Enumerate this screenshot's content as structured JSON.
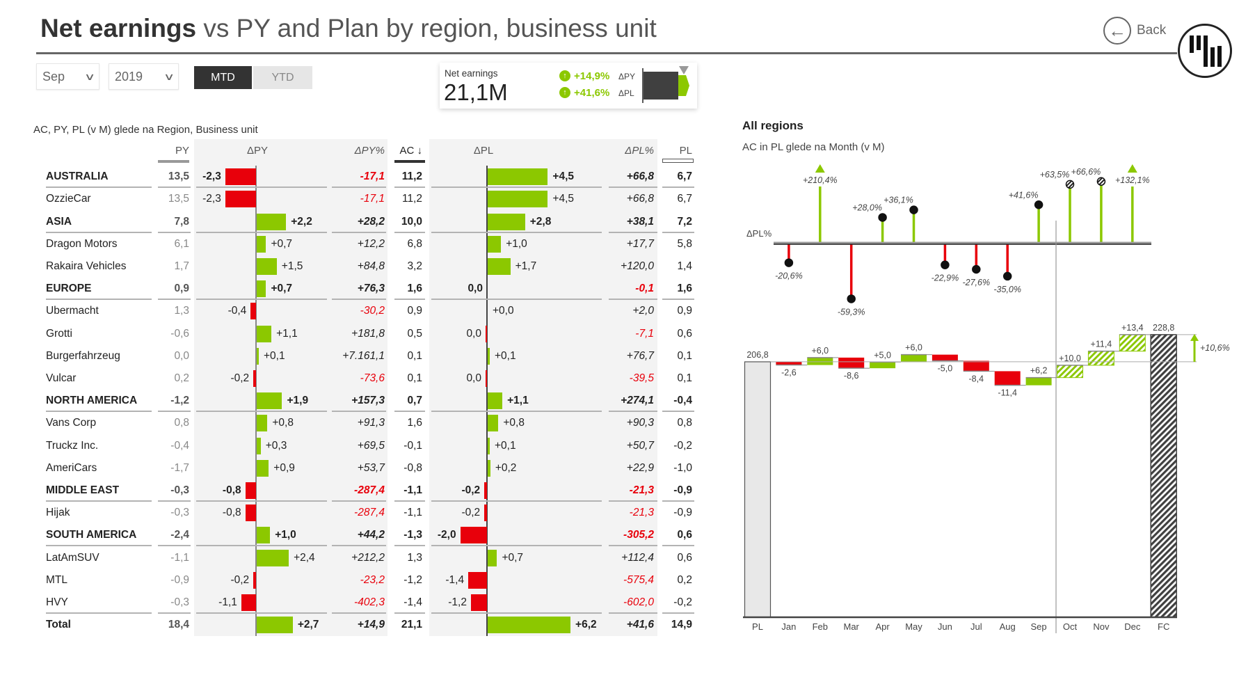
{
  "header": {
    "title_bold": "Net earnings",
    "title_rest": " vs PY and Plan by region, business unit",
    "back_label": "Back"
  },
  "filters": {
    "month": "Sep",
    "year": "2019",
    "toggle": [
      {
        "label": "MTD",
        "active": true
      },
      {
        "label": "YTD",
        "active": false
      }
    ]
  },
  "kpi_card": {
    "label": "Net earnings",
    "value": "21,1M",
    "delta_py": "+14,9%",
    "delta_py_label": "ΔPY",
    "delta_pl": "+41,6%",
    "delta_pl_label": "ΔPL"
  },
  "colors": {
    "positive": "#8cc800",
    "negative": "#e8000b",
    "ac": "#404040",
    "band": "#f3f3f3"
  },
  "table": {
    "subtitle": "AC, PY, PL (v M) glede na Region, Business unit",
    "headers": {
      "py": "PY",
      "dpy": "ΔPY",
      "dpy_pct": "ΔPY%",
      "ac": "AC ↓",
      "dpl": "ΔPL",
      "dpl_pct": "ΔPL%",
      "pl": "PL"
    },
    "rows": [
      {
        "name": "AUSTRALIA",
        "bold": true,
        "py": "13,5",
        "dpy": "-2,3",
        "dpy_pct": "-17,1",
        "ac": "11,2",
        "dpl": "+4,5",
        "dpl_pct": "+66,8",
        "pl": "6,7"
      },
      {
        "name": "OzzieCar",
        "bold": false,
        "py": "13,5",
        "dpy": "-2,3",
        "dpy_pct": "-17,1",
        "ac": "11,2",
        "dpl": "+4,5",
        "dpl_pct": "+66,8",
        "pl": "6,7"
      },
      {
        "name": "ASIA",
        "bold": true,
        "py": "7,8",
        "dpy": "+2,2",
        "dpy_pct": "+28,2",
        "ac": "10,0",
        "dpl": "+2,8",
        "dpl_pct": "+38,1",
        "pl": "7,2"
      },
      {
        "name": "Dragon Motors",
        "bold": false,
        "py": "6,1",
        "dpy": "+0,7",
        "dpy_pct": "+12,2",
        "ac": "6,8",
        "dpl": "+1,0",
        "dpl_pct": "+17,7",
        "pl": "5,8"
      },
      {
        "name": "Rakaira Vehicles",
        "bold": false,
        "py": "1,7",
        "dpy": "+1,5",
        "dpy_pct": "+84,8",
        "ac": "3,2",
        "dpl": "+1,7",
        "dpl_pct": "+120,0",
        "pl": "1,4"
      },
      {
        "name": "EUROPE",
        "bold": true,
        "py": "0,9",
        "dpy": "+0,7",
        "dpy_pct": "+76,3",
        "ac": "1,6",
        "dpl": "0,0",
        "dpl_pct": "-0,1",
        "pl": "1,6"
      },
      {
        "name": "Ubermacht",
        "bold": false,
        "py": "1,3",
        "dpy": "-0,4",
        "dpy_pct": "-30,2",
        "ac": "0,9",
        "dpl": "+0,0",
        "dpl_pct": "+2,0",
        "pl": "0,9"
      },
      {
        "name": "Grotti",
        "bold": false,
        "py": "-0,6",
        "dpy": "+1,1",
        "dpy_pct": "+181,8",
        "ac": "0,5",
        "dpl": "0,0",
        "dpl_pct": "-7,1",
        "pl": "0,6"
      },
      {
        "name": "Burgerfahrzeug",
        "bold": false,
        "py": "0,0",
        "dpy": "+0,1",
        "dpy_pct": "+7.161,1",
        "ac": "0,1",
        "dpl": "+0,1",
        "dpl_pct": "+76,7",
        "pl": "0,1"
      },
      {
        "name": "Vulcar",
        "bold": false,
        "py": "0,2",
        "dpy": "-0,2",
        "dpy_pct": "-73,6",
        "ac": "0,1",
        "dpl": "0,0",
        "dpl_pct": "-39,5",
        "pl": "0,1"
      },
      {
        "name": "NORTH AMERICA",
        "bold": true,
        "py": "-1,2",
        "dpy": "+1,9",
        "dpy_pct": "+157,3",
        "ac": "0,7",
        "dpl": "+1,1",
        "dpl_pct": "+274,1",
        "pl": "-0,4"
      },
      {
        "name": "Vans Corp",
        "bold": false,
        "py": "0,8",
        "dpy": "+0,8",
        "dpy_pct": "+91,3",
        "ac": "1,6",
        "dpl": "+0,8",
        "dpl_pct": "+90,3",
        "pl": "0,8"
      },
      {
        "name": "Truckz Inc.",
        "bold": false,
        "py": "-0,4",
        "dpy": "+0,3",
        "dpy_pct": "+69,5",
        "ac": "-0,1",
        "dpl": "+0,1",
        "dpl_pct": "+50,7",
        "pl": "-0,2"
      },
      {
        "name": "AmeriCars",
        "bold": false,
        "py": "-1,7",
        "dpy": "+0,9",
        "dpy_pct": "+53,7",
        "ac": "-0,8",
        "dpl": "+0,2",
        "dpl_pct": "+22,9",
        "pl": "-1,0"
      },
      {
        "name": "MIDDLE EAST",
        "bold": true,
        "py": "-0,3",
        "dpy": "-0,8",
        "dpy_pct": "-287,4",
        "ac": "-1,1",
        "dpl": "-0,2",
        "dpl_pct": "-21,3",
        "pl": "-0,9"
      },
      {
        "name": "Hijak",
        "bold": false,
        "py": "-0,3",
        "dpy": "-0,8",
        "dpy_pct": "-287,4",
        "ac": "-1,1",
        "dpl": "-0,2",
        "dpl_pct": "-21,3",
        "pl": "-0,9"
      },
      {
        "name": "SOUTH AMERICA",
        "bold": true,
        "py": "-2,4",
        "dpy": "+1,0",
        "dpy_pct": "+44,2",
        "ac": "-1,3",
        "dpl": "-2,0",
        "dpl_pct": "-305,2",
        "pl": "0,6"
      },
      {
        "name": "LatAmSUV",
        "bold": false,
        "py": "-1,1",
        "dpy": "+2,4",
        "dpy_pct": "+212,2",
        "ac": "1,3",
        "dpl": "+0,7",
        "dpl_pct": "+112,4",
        "pl": "0,6"
      },
      {
        "name": "MTL",
        "bold": false,
        "py": "-0,9",
        "dpy": "-0,2",
        "dpy_pct": "-23,2",
        "ac": "-1,2",
        "dpl": "-1,4",
        "dpl_pct": "-575,4",
        "pl": "0,2"
      },
      {
        "name": "HVY",
        "bold": false,
        "py": "-0,3",
        "dpy": "-1,1",
        "dpy_pct": "-402,3",
        "ac": "-1,4",
        "dpl": "-1,2",
        "dpl_pct": "-602,0",
        "pl": "-0,2"
      },
      {
        "name": "Total",
        "bold": true,
        "py": "18,4",
        "dpy": "+2,7",
        "dpy_pct": "+14,9",
        "ac": "21,1",
        "dpl": "+6,2",
        "dpl_pct": "+41,6",
        "pl": "14,9"
      }
    ]
  },
  "right_panel": {
    "title": "All regions",
    "subtitle": "AC in PL glede na Month (v M)"
  },
  "chart_data": [
    {
      "type": "lollipop",
      "ylabel": "ΔPL%",
      "categories": [
        "Jan",
        "Feb",
        "Mar",
        "Apr",
        "May",
        "Jun",
        "Jul",
        "Aug",
        "Sep",
        "Oct",
        "Nov",
        "Dec"
      ],
      "values": [
        -20.6,
        210.4,
        -59.3,
        28.0,
        36.1,
        -22.9,
        -27.6,
        -35.0,
        41.6,
        63.5,
        66.6,
        132.1
      ],
      "labels": [
        "-20,6%",
        "+210,4%",
        "-59,3%",
        "+28,0%",
        "+36,1%",
        "-22,9%",
        "-27,6%",
        "-35,0%",
        "+41,6%",
        "+63,5%",
        "+66,6%",
        "+132,1%"
      ],
      "forecast": [
        false,
        false,
        false,
        false,
        false,
        false,
        false,
        false,
        false,
        true,
        true,
        true
      ]
    },
    {
      "type": "waterfall",
      "categories": [
        "PL",
        "Jan",
        "Feb",
        "Mar",
        "Apr",
        "May",
        "Jun",
        "Jul",
        "Aug",
        "Sep",
        "Oct",
        "Nov",
        "Dec",
        "FC"
      ],
      "start": 206.8,
      "start_label": "206,8",
      "deltas": [
        -2.6,
        6.0,
        -8.6,
        5.0,
        6.0,
        -5.0,
        -8.4,
        -11.4,
        6.2,
        10.0,
        11.4,
        13.4
      ],
      "delta_labels": [
        "-2,6",
        "+6,0",
        "-8,6",
        "+5,0",
        "+6,0",
        "-5,0",
        "-8,4",
        "-11,4",
        "+6,2",
        "+10,0",
        "+11,4",
        "+13,4"
      ],
      "forecast": [
        false,
        false,
        false,
        false,
        false,
        false,
        false,
        false,
        false,
        true,
        true,
        true
      ],
      "end": 228.8,
      "end_label": "228,8",
      "variance_label": "+10,6%"
    }
  ]
}
